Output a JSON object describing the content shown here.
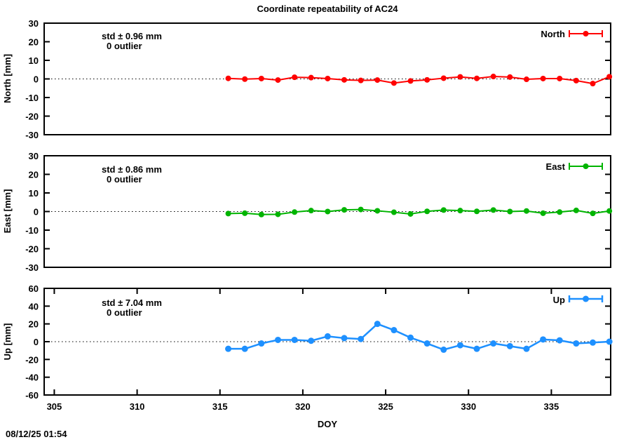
{
  "title": "Coordinate repeatability of AC24",
  "timestamp": "08/12/25 01:54",
  "x_axis": {
    "label": "DOY",
    "min": 304.39,
    "max": 338.58,
    "ticks": [
      305,
      310,
      315,
      320,
      325,
      330,
      335
    ]
  },
  "chart_data": [
    {
      "type": "line",
      "name": "North",
      "legend": "North",
      "ylabel": "North [mm]",
      "std_label": "std ± 0.96 mm",
      "outlier_label": "0 outlier",
      "color": "#ff0000",
      "ylim": [
        -30,
        30
      ],
      "ytick_step": 10,
      "x": [
        315.5,
        316.5,
        317.5,
        318.5,
        319.5,
        320.5,
        321.5,
        322.5,
        323.5,
        324.5,
        325.5,
        326.5,
        327.5,
        328.5,
        329.5,
        330.5,
        331.5,
        332.5,
        333.5,
        334.5,
        335.5,
        336.5,
        337.5,
        338.5
      ],
      "values": [
        0.3,
        -0.1,
        0.2,
        -0.6,
        0.9,
        0.7,
        0.2,
        -0.5,
        -0.8,
        -0.6,
        -2.2,
        -1.1,
        -0.5,
        0.4,
        1.1,
        0.3,
        1.3,
        1.0,
        -0.2,
        0.2,
        0.2,
        -0.9,
        -2.5,
        1.2
      ]
    },
    {
      "type": "line",
      "name": "East",
      "legend": "East",
      "ylabel": "East [mm]",
      "std_label": "std ± 0.86 mm",
      "outlier_label": "0 outlier",
      "color": "#00b400",
      "ylim": [
        -30,
        30
      ],
      "ytick_step": 10,
      "x": [
        315.5,
        316.5,
        317.5,
        318.5,
        319.5,
        320.5,
        321.5,
        322.5,
        323.5,
        324.5,
        325.5,
        326.5,
        327.5,
        328.5,
        329.5,
        330.5,
        331.5,
        332.5,
        333.5,
        334.5,
        335.5,
        336.5,
        337.5,
        338.5
      ],
      "values": [
        -1.1,
        -0.9,
        -1.6,
        -1.5,
        -0.3,
        0.5,
        0.0,
        0.9,
        1.1,
        0.4,
        -0.4,
        -1.3,
        0.1,
        0.8,
        0.5,
        0.1,
        0.8,
        0.0,
        0.3,
        -0.9,
        -0.3,
        0.6,
        -1.0,
        0.3
      ]
    },
    {
      "type": "line",
      "name": "Up",
      "legend": "Up",
      "ylabel": "Up [mm]",
      "std_label": "std ± 7.04 mm",
      "outlier_label": "0 outlier",
      "color": "#1e90ff",
      "ylim": [
        -60,
        60
      ],
      "ytick_step": 20,
      "x": [
        315.5,
        316.5,
        317.5,
        318.5,
        319.5,
        320.5,
        321.5,
        322.5,
        323.5,
        324.5,
        325.5,
        326.5,
        327.5,
        328.5,
        329.5,
        330.5,
        331.5,
        332.5,
        333.5,
        334.5,
        335.5,
        336.5,
        337.5,
        338.5
      ],
      "values": [
        -8,
        -8,
        -2,
        2,
        2,
        1,
        6,
        4,
        3,
        20,
        13,
        4.5,
        -2,
        -9,
        -4,
        -8,
        -2,
        -5,
        -8,
        2.5,
        1.5,
        -2,
        -1,
        0
      ]
    }
  ]
}
